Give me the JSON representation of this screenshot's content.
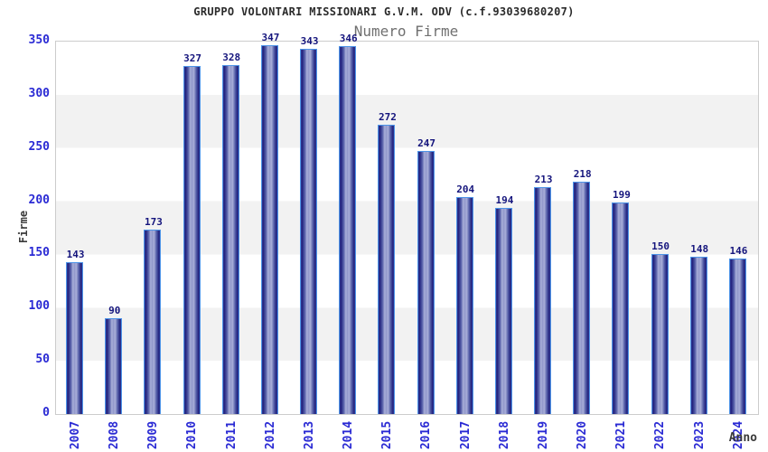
{
  "title": "GRUPPO VOLONTARI MISSIONARI G.V.M. ODV (c.f.93039680207)",
  "subtitle": "Numero Firme",
  "y_axis_label": "Firme",
  "x_axis_label": "Anno",
  "chart_data": {
    "type": "bar",
    "title": "Numero Firme",
    "xlabel": "Anno",
    "ylabel": "Firme",
    "ylim": [
      0,
      350
    ],
    "y_ticks": [
      0,
      50,
      100,
      150,
      200,
      250,
      300,
      350
    ],
    "grid": "alternating-horizontal-bands-every-50",
    "legend": "none",
    "categories": [
      "2007",
      "2008",
      "2009",
      "2010",
      "2011",
      "2012",
      "2013",
      "2014",
      "2015",
      "2016",
      "2017",
      "2018",
      "2019",
      "2020",
      "2021",
      "2022",
      "2023",
      "2024"
    ],
    "values": [
      143,
      90,
      173,
      327,
      328,
      347,
      343,
      346,
      272,
      247,
      204,
      194,
      213,
      218,
      199,
      150,
      148,
      146
    ]
  },
  "colors": {
    "bar_edge": "#4d94e8",
    "bar_dark": "#20207c",
    "bar_light": "#aab0da",
    "value_label": "#15157d",
    "tick_label": "#2a2ad4",
    "band": "#f2f2f2",
    "plot_border": "#cccccc",
    "title_text": "#2b2b2b",
    "subtitle_text": "#707070",
    "axis_title": "#3a3a3a"
  }
}
